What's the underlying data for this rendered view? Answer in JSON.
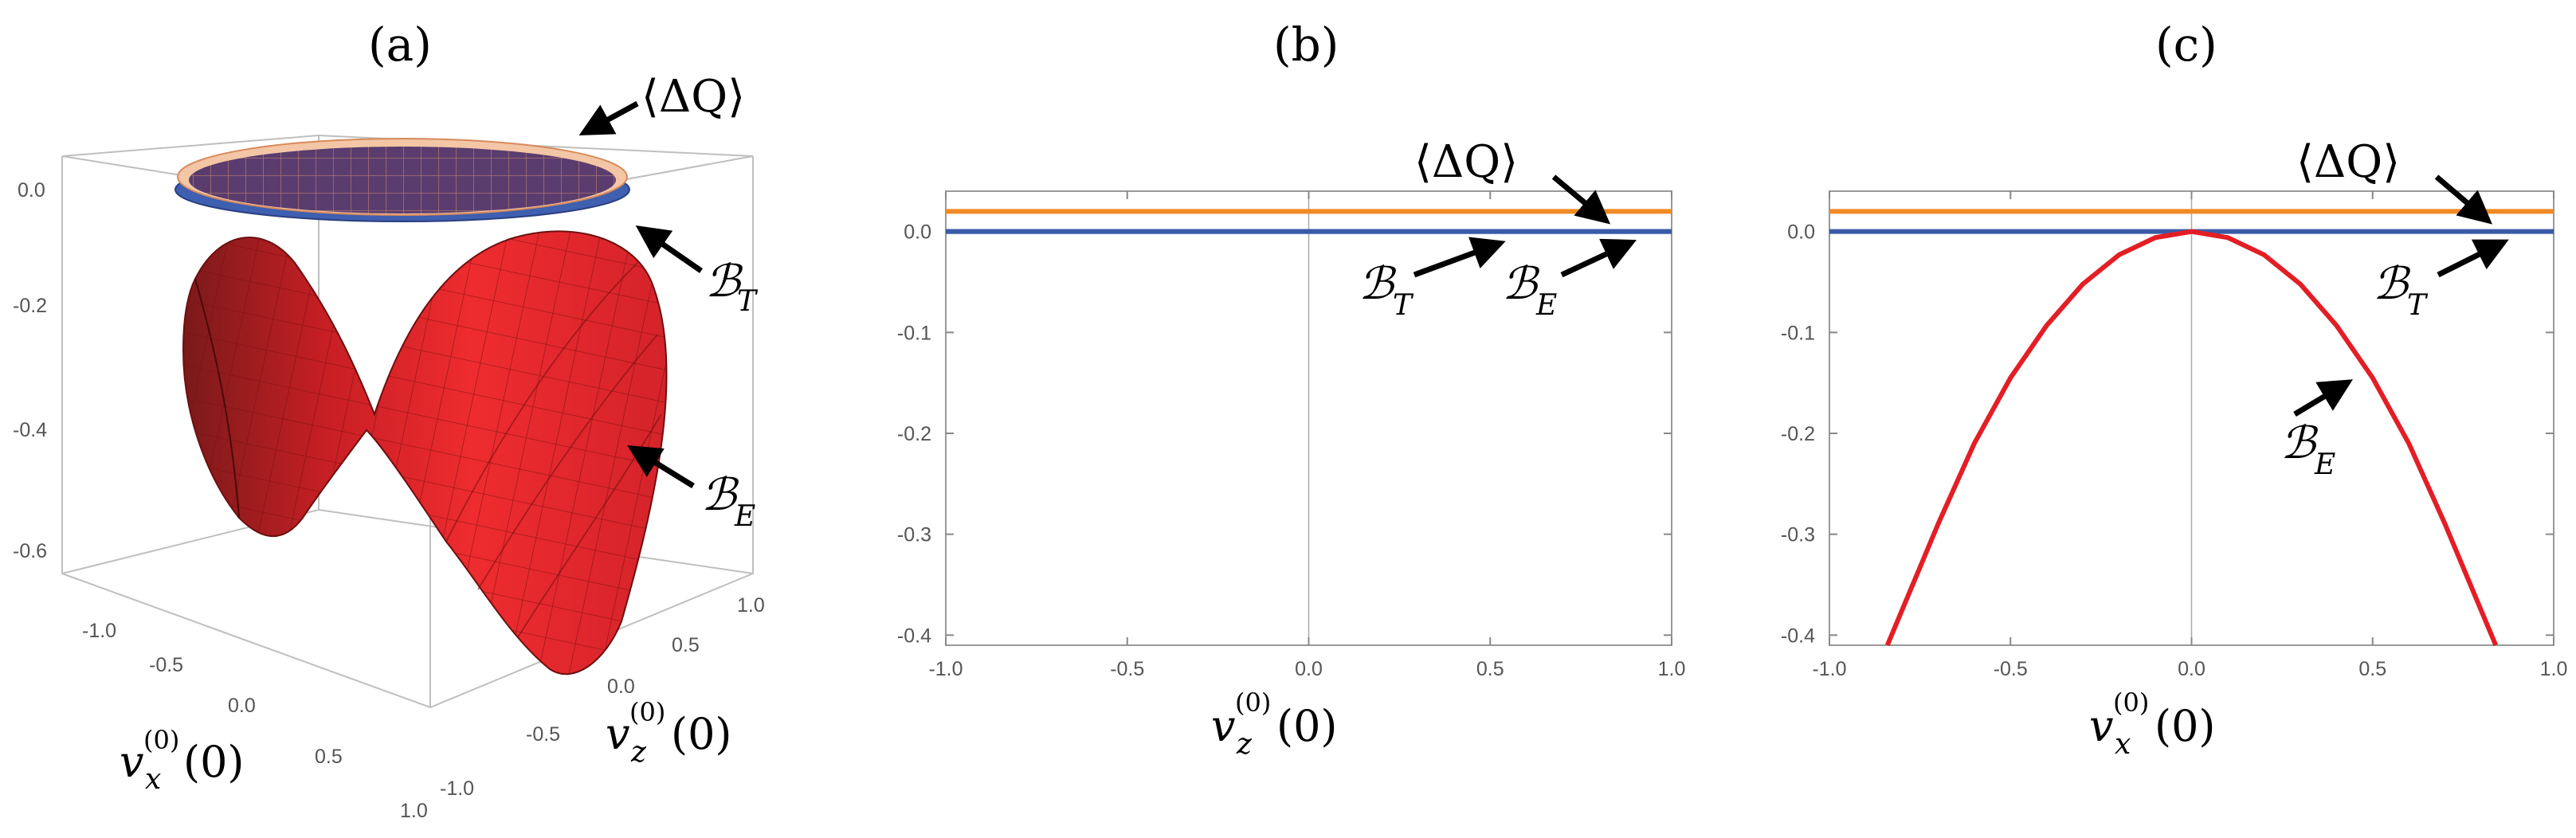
{
  "panels": {
    "a": {
      "label": "(a)",
      "z_ticks": [
        "0.0",
        "-0.2",
        "-0.4",
        "-0.6"
      ],
      "x_ticks": [
        "-1.0",
        "-0.5",
        "0.0",
        "0.5",
        "1.0"
      ],
      "z2_ticks": [
        "1.0",
        "0.5",
        "0.0",
        "-0.5",
        "-1.0"
      ],
      "xlabel_main": "v",
      "xlabel_sub": "x",
      "xlabel_sup": "(0)",
      "xlabel_arg": "(0)",
      "zlabel_main": "v",
      "zlabel_sub": "z",
      "zlabel_sup": "(0)",
      "zlabel_arg": "(0)",
      "annotations": {
        "dq": "⟨ΔQ⟩",
        "bt_main": "ℬ",
        "bt_sub": "T",
        "be_main": "ℬ",
        "be_sub": "E"
      }
    },
    "b": {
      "label": "(b)",
      "xlabel_main": "v",
      "xlabel_sub": "z",
      "xlabel_sup": "(0)",
      "xlabel_arg": "(0)",
      "annotations": {
        "dq": "⟨ΔQ⟩",
        "bt_main": "ℬ",
        "bt_sub": "T",
        "be_main": "ℬ",
        "be_sub": "E"
      }
    },
    "c": {
      "label": "(c)",
      "xlabel_main": "v",
      "xlabel_sub": "x",
      "xlabel_sup": "(0)",
      "xlabel_arg": "(0)",
      "annotations": {
        "dq": "⟨ΔQ⟩",
        "bt_main": "ℬ",
        "bt_sub": "T",
        "be_main": "ℬ",
        "be_sub": "E"
      }
    }
  },
  "colors": {
    "orange": "#f08a24",
    "blue": "#3a5ba8",
    "red": "#e31e24",
    "surface_red": "#e8252a",
    "disk_top": "#5a3a6a",
    "disk_rim": "#3f5fb0"
  },
  "chart_data": [
    {
      "type": "surface3d",
      "panel": "a",
      "series": [
        {
          "name": "⟨ΔQ⟩",
          "z": 0.0
        },
        {
          "name": "ℬ_T",
          "z": -0.02
        },
        {
          "name": "ℬ_E",
          "formula_shape": "saddle"
        }
      ],
      "xlim": [
        -1.0,
        1.0
      ],
      "ylim": [
        -1.0,
        1.0
      ],
      "zlim": [
        -0.7,
        0.05
      ]
    },
    {
      "type": "line",
      "panel": "b",
      "xlim": [
        -1.0,
        1.0
      ],
      "ylim": [
        -0.41,
        0.04
      ],
      "x_ticks": [
        -1.0,
        -0.5,
        0.0,
        0.5,
        1.0
      ],
      "y_ticks": [
        0.0,
        -0.1,
        -0.2,
        -0.3,
        -0.4
      ],
      "series": [
        {
          "name": "⟨ΔQ⟩",
          "color": "#f08a24",
          "x": [
            -1.0,
            1.0
          ],
          "y": [
            0.02,
            0.02
          ]
        },
        {
          "name": "ℬ_T",
          "color": "#3a5ba8",
          "x": [
            -1.0,
            1.0
          ],
          "y": [
            0.0,
            0.0
          ]
        },
        {
          "name": "ℬ_E",
          "color": "#3a5ba8",
          "x": [
            -1.0,
            1.0
          ],
          "y": [
            0.0,
            0.0
          ]
        }
      ]
    },
    {
      "type": "line",
      "panel": "c",
      "xlim": [
        -1.0,
        1.0
      ],
      "ylim": [
        -0.41,
        0.04
      ],
      "x_ticks": [
        -1.0,
        -0.5,
        0.0,
        0.5,
        1.0
      ],
      "y_ticks": [
        0.0,
        -0.1,
        -0.2,
        -0.3,
        -0.4
      ],
      "series": [
        {
          "name": "⟨ΔQ⟩",
          "color": "#f08a24",
          "x": [
            -1.0,
            1.0
          ],
          "y": [
            0.02,
            0.02
          ]
        },
        {
          "name": "ℬ_T",
          "color": "#3a5ba8",
          "x": [
            -1.0,
            1.0
          ],
          "y": [
            0.0,
            0.0
          ]
        },
        {
          "name": "ℬ_E",
          "color": "#e31e24",
          "x": [
            -0.84,
            -0.7,
            -0.6,
            -0.5,
            -0.4,
            -0.3,
            -0.2,
            -0.1,
            0.0,
            0.1,
            0.2,
            0.3,
            0.4,
            0.5,
            0.6,
            0.7,
            0.84
          ],
          "y": [
            -0.41,
            -0.29,
            -0.21,
            -0.145,
            -0.093,
            -0.052,
            -0.023,
            -0.006,
            0.0,
            -0.006,
            -0.023,
            -0.052,
            -0.093,
            -0.145,
            -0.21,
            -0.29,
            -0.41
          ]
        }
      ]
    }
  ]
}
